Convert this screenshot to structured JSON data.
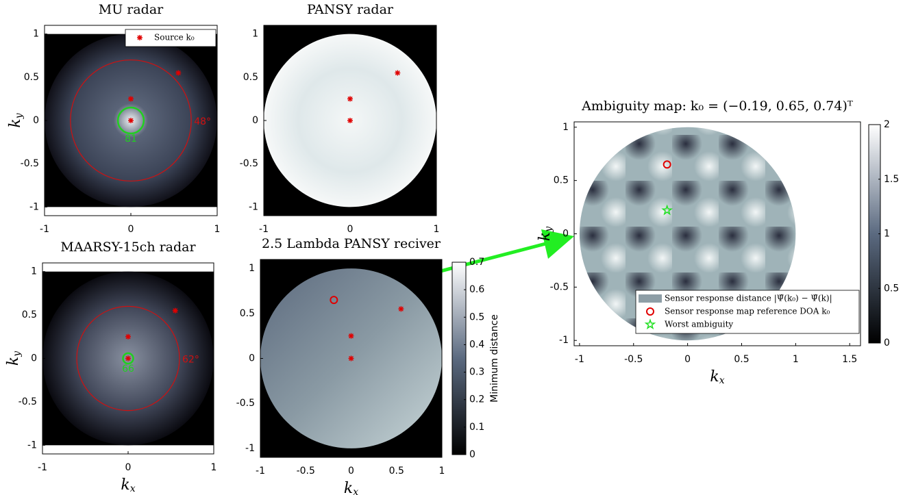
{
  "chart_data": [
    {
      "type": "heatmap",
      "title": "MU radar",
      "ylabel": {
        "text": "k",
        "sub": "y"
      },
      "xlim": [
        -1,
        1
      ],
      "ylim": [
        -1.1,
        1.1
      ],
      "xticks": [
        -1,
        0,
        1
      ],
      "yticks": [
        -1,
        -0.5,
        0,
        0.5,
        1
      ],
      "series": [
        {
          "name": "Source k₀",
          "marker": "asterisk",
          "color": "#e00000",
          "x": [
            0,
            0,
            0.55
          ],
          "y": [
            0,
            0.25,
            0.55
          ]
        }
      ],
      "circles": [
        {
          "r": 0.7,
          "color": "#d01010",
          "label": "48°"
        },
        {
          "r": 0.15,
          "color": "#20d020",
          "label": "81"
        }
      ],
      "legend": "upper right"
    },
    {
      "type": "heatmap",
      "title": "PANSY radar",
      "xlim": [
        -1,
        1
      ],
      "ylim": [
        -1.1,
        1.1
      ],
      "xticks": [
        -1,
        0,
        1
      ],
      "yticks": [
        -1,
        -0.5,
        0,
        0.5,
        1
      ],
      "series": [
        {
          "marker": "asterisk",
          "color": "#e00000",
          "x": [
            0,
            0,
            0.55
          ],
          "y": [
            0,
            0.25,
            0.55
          ]
        }
      ]
    },
    {
      "type": "heatmap",
      "title": "MAARSY-15ch radar",
      "xlabel": {
        "text": "k",
        "sub": "x"
      },
      "ylabel": {
        "text": "k",
        "sub": "y"
      },
      "xlim": [
        -1,
        1
      ],
      "ylim": [
        -1.1,
        1.1
      ],
      "xticks": [
        -1,
        0,
        1
      ],
      "yticks": [
        -1,
        -0.5,
        0,
        0.5,
        1
      ],
      "series": [
        {
          "marker": "asterisk",
          "color": "#e00000",
          "x": [
            0,
            0,
            0.55
          ],
          "y": [
            0,
            0.25,
            0.55
          ]
        }
      ],
      "circles": [
        {
          "r": 0.6,
          "color": "#d01010",
          "label": "62°"
        },
        {
          "r": 0.06,
          "color": "#20d020",
          "label": "66"
        }
      ]
    },
    {
      "type": "heatmap",
      "title": "2.5 Lambda PANSY reciver",
      "xlabel": {
        "text": "k",
        "sub": "x"
      },
      "xlim": [
        -1,
        1
      ],
      "ylim": [
        -1.1,
        1.1
      ],
      "xticks": [
        -1,
        -0.5,
        0,
        0.5,
        1
      ],
      "yticks": [
        -1,
        -0.5,
        0,
        0.5,
        1
      ],
      "series": [
        {
          "marker": "asterisk",
          "color": "#e00000",
          "x": [
            0,
            0,
            0.55
          ],
          "y": [
            0,
            0.25,
            0.55
          ]
        },
        {
          "marker": "circle",
          "color": "#e00000",
          "x": [
            -0.19
          ],
          "y": [
            0.65
          ]
        }
      ],
      "colorbar": {
        "clim": [
          0,
          0.7
        ],
        "ticks": [
          0,
          0.1,
          0.2,
          0.3,
          0.4,
          0.5,
          0.6,
          0.7
        ],
        "label": "Minimum distance"
      }
    },
    {
      "type": "heatmap",
      "title": "Ambiguity map: k₀ = (−0.19, 0.65, 0.74)ᵀ",
      "xlabel": {
        "text": "k",
        "sub": "x"
      },
      "ylabel": {
        "text": "k",
        "sub": "y"
      },
      "xlim": [
        -1.05,
        1.6
      ],
      "ylim": [
        -1.05,
        1.05
      ],
      "xticks": [
        -1,
        -0.5,
        0,
        0.5,
        1,
        1.5
      ],
      "yticks": [
        -1,
        -0.5,
        0,
        0.5,
        1
      ],
      "heatmap_name": "Sensor response distance |Ψ̂(k₀) − Ψ̂(k)|",
      "series": [
        {
          "name": "Sensor response map reference DOA k₀",
          "marker": "circle",
          "color": "#e00000",
          "x": [
            -0.19
          ],
          "y": [
            0.65
          ]
        },
        {
          "name": "Worst ambiguity",
          "marker": "star",
          "color": "#20e020",
          "x": [
            -0.19
          ],
          "y": [
            0.22
          ]
        }
      ],
      "colorbar": {
        "clim": [
          0,
          2
        ],
        "ticks": [
          0,
          0.5,
          1,
          1.5,
          2
        ]
      },
      "legend": "lower right"
    }
  ]
}
